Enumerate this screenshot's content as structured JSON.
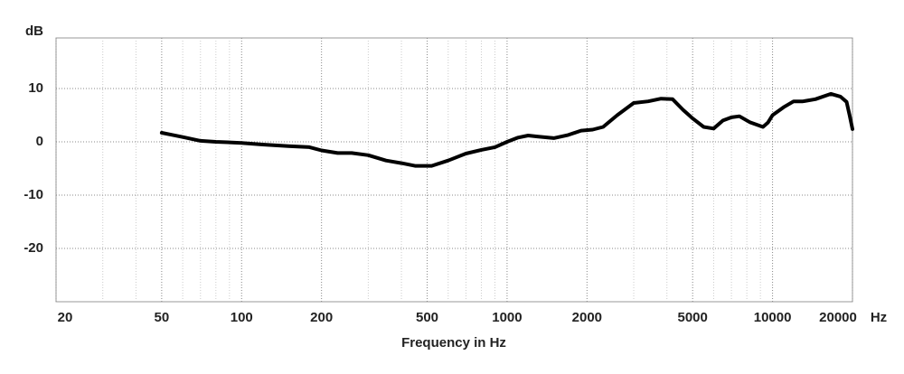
{
  "chart_data": {
    "type": "line",
    "ylabel": "dB",
    "xlabel": "Frequency in Hz",
    "x_unit": "Hz",
    "xscale": "log",
    "grid": true,
    "xlim": [
      20,
      20000
    ],
    "ylim": [
      -30,
      19.5
    ],
    "xticks": [
      20,
      50,
      100,
      200,
      500,
      1000,
      2000,
      5000,
      10000,
      20000
    ],
    "xminorticks": [
      30,
      40,
      60,
      70,
      80,
      90,
      300,
      400,
      600,
      700,
      800,
      900,
      3000,
      4000,
      6000,
      7000,
      8000,
      9000
    ],
    "yticks": [
      -20,
      -10,
      0,
      10
    ],
    "series": [
      {
        "color": "#000000",
        "x": [
          50,
          55,
          60,
          70,
          80,
          100,
          120,
          150,
          180,
          200,
          230,
          260,
          300,
          350,
          400,
          450,
          520,
          600,
          700,
          800,
          900,
          1000,
          1100,
          1200,
          1300,
          1500,
          1700,
          1900,
          2100,
          2300,
          2600,
          3000,
          3400,
          3800,
          4200,
          4600,
          5000,
          5500,
          6000,
          6500,
          7000,
          7500,
          8200,
          9200,
          9600,
          10000,
          11000,
          12000,
          13000,
          14500,
          16600,
          18000,
          19000,
          19500,
          20000
        ],
        "values": [
          1.7,
          1.3,
          0.9,
          0.2,
          0,
          -0.2,
          -0.5,
          -0.8,
          -1.0,
          -1.6,
          -2.1,
          -2.1,
          -2.5,
          -3.5,
          -4.0,
          -4.5,
          -4.5,
          -3.5,
          -2.2,
          -1.5,
          -1.0,
          0,
          0.8,
          1.2,
          1.0,
          0.7,
          1.3,
          2.1,
          2.3,
          2.8,
          5.0,
          7.3,
          7.6,
          8.1,
          8.0,
          6.0,
          4.4,
          2.8,
          2.5,
          4.0,
          4.6,
          4.8,
          3.7,
          2.8,
          3.6,
          5.0,
          6.5,
          7.6,
          7.6,
          8.0,
          9.0,
          8.5,
          7.5,
          5.0,
          2.4
        ]
      }
    ]
  }
}
